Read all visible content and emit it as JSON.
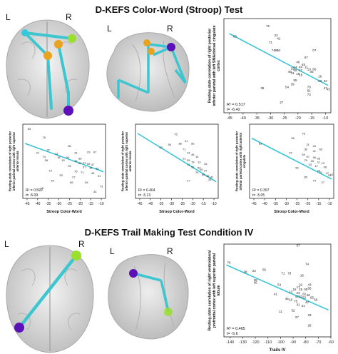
{
  "sections": [
    {
      "title": "D-KEFS Color-Word (Stroop) Test"
    },
    {
      "title": "D-KEFS Trail Making Test Condition IV"
    }
  ],
  "orientation": {
    "left": "L",
    "right": "R"
  },
  "colors": {
    "fit_line": "#39c5d6",
    "connection": "#3cc6d0",
    "node_green": "#9adf2e",
    "node_orange": "#e9a320",
    "node_purple": "#5b10b8",
    "node_cyan": "#36c8df",
    "brain_fill": "#d9d9d9"
  },
  "chart_data": [
    {
      "type": "scatter",
      "panel": "stroop-main",
      "xlabel": "Stroop Color-Word",
      "ylabel": "Resting-state correlation of right posterior inferior parietal with left SMA/dorsal cingulate cortex",
      "xlim": [
        -47,
        -8
      ],
      "ylim": [
        -1,
        1
      ],
      "xticks": [
        -45,
        -40,
        -35,
        -30,
        -25,
        -20,
        -15,
        -10
      ],
      "yticks": [],
      "fit": {
        "x": [
          -45,
          -9
        ],
        "y": [
          0.68,
          -0.42
        ]
      },
      "stats": [
        "R² = 0.517",
        "t= -6.42"
      ],
      "points": [
        {
          "x": -31,
          "y": 0.82,
          "label": "76"
        },
        {
          "x": -43,
          "y": 0.6,
          "label": "63"
        },
        {
          "x": -28,
          "y": 0.62,
          "label": "22"
        },
        {
          "x": -27,
          "y": 0.55,
          "label": "41"
        },
        {
          "x": -30,
          "y": 0.47,
          "label": "71"
        },
        {
          "x": -28,
          "y": 0.3,
          "label": "36"
        },
        {
          "x": -29,
          "y": 0.3,
          "label": "74"
        },
        {
          "x": -27,
          "y": 0.3,
          "label": "52"
        },
        {
          "x": -14,
          "y": 0.3,
          "label": "07"
        },
        {
          "x": -17,
          "y": 0.15,
          "label": "67"
        },
        {
          "x": -20,
          "y": 0.05,
          "label": "46"
        },
        {
          "x": -18,
          "y": 0.0,
          "label": "45"
        },
        {
          "x": -21,
          "y": -0.05,
          "label": "14"
        },
        {
          "x": -19,
          "y": -0.05,
          "label": "44"
        },
        {
          "x": -17,
          "y": -0.05,
          "label": "11"
        },
        {
          "x": -22,
          "y": -0.08,
          "label": "15"
        },
        {
          "x": -16,
          "y": -0.1,
          "label": "13"
        },
        {
          "x": -14,
          "y": -0.1,
          "label": "65"
        },
        {
          "x": -21,
          "y": -0.12,
          "label": "06"
        },
        {
          "x": -19,
          "y": -0.12,
          "label": "17"
        },
        {
          "x": -15,
          "y": -0.15,
          "label": "05"
        },
        {
          "x": -23,
          "y": -0.15,
          "label": "49"
        },
        {
          "x": -22,
          "y": -0.18,
          "label": "31"
        },
        {
          "x": -20,
          "y": -0.2,
          "label": "19"
        },
        {
          "x": -19,
          "y": -0.22,
          "label": "18"
        },
        {
          "x": -12,
          "y": -0.25,
          "label": "16"
        },
        {
          "x": -21,
          "y": -0.33,
          "label": "55"
        },
        {
          "x": -12,
          "y": -0.35,
          "label": "23"
        },
        {
          "x": -10,
          "y": -0.35,
          "label": "32"
        },
        {
          "x": -22,
          "y": -0.42,
          "label": "39"
        },
        {
          "x": -16,
          "y": -0.48,
          "label": "79"
        },
        {
          "x": -33,
          "y": -0.5,
          "label": "38"
        },
        {
          "x": -24,
          "y": -0.48,
          "label": "54"
        },
        {
          "x": -16,
          "y": -0.55,
          "label": "61"
        },
        {
          "x": -10,
          "y": -0.5,
          "label": "47"
        },
        {
          "x": -9,
          "y": -0.52,
          "label": "43"
        },
        {
          "x": -16,
          "y": -0.64,
          "label": "73"
        },
        {
          "x": -26,
          "y": -0.8,
          "label": "27"
        }
      ]
    },
    {
      "type": "scatter",
      "panel": "stroop-lower-1",
      "xlabel": "Stroop Color-Word",
      "ylabel": "Resting-state correlation of right posterior inferior parietal cortex with right superior anterior insula",
      "xlim": [
        -47,
        -8
      ],
      "ylim": [
        -1,
        1
      ],
      "xticks": [
        -45,
        -40,
        -35,
        -30,
        -25,
        -20,
        -15,
        -10
      ],
      "yticks": [],
      "fit": {
        "x": [
          -46,
          -9
        ],
        "y": [
          0.48,
          -0.28
        ]
      },
      "stats": [
        "R² = 0.590",
        "t= -5.09"
      ],
      "points": [
        {
          "x": -44,
          "y": 0.85,
          "label": "63"
        },
        {
          "x": -37,
          "y": 0.62,
          "label": "76"
        },
        {
          "x": -25,
          "y": 0.38,
          "label": "56"
        },
        {
          "x": -35,
          "y": 0.28,
          "label": "22"
        },
        {
          "x": -40,
          "y": 0.2,
          "label": "21"
        },
        {
          "x": -31,
          "y": 0.18,
          "label": "11"
        },
        {
          "x": -22,
          "y": 0.2,
          "label": "41"
        },
        {
          "x": -16,
          "y": 0.22,
          "label": "29"
        },
        {
          "x": -13,
          "y": 0.22,
          "label": "07"
        },
        {
          "x": -37,
          "y": 0.1,
          "label": "74"
        },
        {
          "x": -30,
          "y": 0.08,
          "label": "36"
        },
        {
          "x": -26,
          "y": 0.08,
          "label": "06"
        },
        {
          "x": -20,
          "y": 0.05,
          "label": "55"
        },
        {
          "x": -36,
          "y": 0.0,
          "label": "38"
        },
        {
          "x": -28,
          "y": 0.0,
          "label": "15"
        },
        {
          "x": -22,
          "y": -0.02,
          "label": "44"
        },
        {
          "x": -20,
          "y": -0.08,
          "label": "52"
        },
        {
          "x": -18,
          "y": -0.08,
          "label": "23"
        },
        {
          "x": -16,
          "y": -0.1,
          "label": "65"
        },
        {
          "x": -14,
          "y": -0.12,
          "label": "47"
        },
        {
          "x": -25,
          "y": -0.15,
          "label": "04"
        },
        {
          "x": -18,
          "y": -0.18,
          "label": "37"
        },
        {
          "x": -15,
          "y": -0.2,
          "label": "16"
        },
        {
          "x": -12,
          "y": -0.22,
          "label": "43"
        },
        {
          "x": -34,
          "y": -0.28,
          "label": "14"
        },
        {
          "x": -22,
          "y": -0.3,
          "label": "75"
        },
        {
          "x": -19,
          "y": -0.33,
          "label": "71"
        },
        {
          "x": -14,
          "y": -0.35,
          "label": "45"
        },
        {
          "x": -29,
          "y": -0.4,
          "label": "33"
        },
        {
          "x": -23,
          "y": -0.45,
          "label": "27"
        },
        {
          "x": -11,
          "y": -0.42,
          "label": "31"
        },
        {
          "x": -33,
          "y": -0.55,
          "label": "54"
        },
        {
          "x": -24,
          "y": -0.6,
          "label": "85"
        },
        {
          "x": -17,
          "y": -0.6,
          "label": "39"
        },
        {
          "x": -10,
          "y": -0.7,
          "label": "73"
        },
        {
          "x": -38,
          "y": -0.75,
          "label": "18"
        },
        {
          "x": -13,
          "y": -0.85,
          "label": "33"
        }
      ]
    },
    {
      "type": "scatter",
      "panel": "stroop-lower-2",
      "xlabel": "Stroop Color-Word",
      "ylabel": "Resting-state correlation of right posterior inferior parietal cortex with right superior anterior insula",
      "xlim": [
        -47,
        -8
      ],
      "ylim": [
        -1,
        1
      ],
      "xticks": [
        -45,
        -40,
        -35,
        -30,
        -25,
        -20,
        -15,
        -10
      ],
      "yticks": [],
      "fit": {
        "x": [
          -46,
          -9
        ],
        "y": [
          0.75,
          -0.55
        ]
      },
      "stats": [
        "R² = 0.404",
        "t= -5.13"
      ],
      "points": [
        {
          "x": -28,
          "y": 0.7,
          "label": "76"
        },
        {
          "x": -23,
          "y": 0.52,
          "label": "41"
        },
        {
          "x": -31,
          "y": 0.42,
          "label": "36"
        },
        {
          "x": -26,
          "y": 0.45,
          "label": "38"
        },
        {
          "x": -20,
          "y": 0.45,
          "label": "50"
        },
        {
          "x": -35,
          "y": 0.35,
          "label": "63"
        },
        {
          "x": -24,
          "y": 0.3,
          "label": "71"
        },
        {
          "x": -22,
          "y": 0.2,
          "label": "44"
        },
        {
          "x": -20,
          "y": 0.15,
          "label": "45"
        },
        {
          "x": -18,
          "y": 0.1,
          "label": "14"
        },
        {
          "x": -24,
          "y": 0.05,
          "label": "21"
        },
        {
          "x": -22,
          "y": 0.0,
          "label": "55"
        },
        {
          "x": -20,
          "y": -0.05,
          "label": "79"
        },
        {
          "x": -17,
          "y": -0.05,
          "label": "13"
        },
        {
          "x": -14,
          "y": -0.1,
          "label": "15"
        },
        {
          "x": -22,
          "y": -0.12,
          "label": "11"
        },
        {
          "x": -20,
          "y": -0.18,
          "label": "52"
        },
        {
          "x": -17,
          "y": -0.2,
          "label": "54"
        },
        {
          "x": -16,
          "y": -0.25,
          "label": "05"
        },
        {
          "x": -14,
          "y": -0.28,
          "label": "37"
        },
        {
          "x": -18,
          "y": -0.33,
          "label": "74"
        },
        {
          "x": -15,
          "y": -0.38,
          "label": "65"
        },
        {
          "x": -13,
          "y": -0.42,
          "label": "46"
        },
        {
          "x": -11,
          "y": -0.45,
          "label": "47"
        },
        {
          "x": -12,
          "y": -0.52,
          "label": "33"
        },
        {
          "x": -22,
          "y": -0.55,
          "label": "27"
        }
      ]
    },
    {
      "type": "scatter",
      "panel": "stroop-lower-3",
      "xlabel": "Stroop Color-Word",
      "ylabel": "Resting-state correlation of right posterior inferior parietal cortex with right anterior cingulate",
      "xlim": [
        -47,
        -8
      ],
      "ylim": [
        -1,
        1
      ],
      "xticks": [
        -45,
        -40,
        -35,
        -30,
        -25,
        -20,
        -15,
        -10
      ],
      "yticks": [],
      "fit": {
        "x": [
          -46,
          -9
        ],
        "y": [
          0.62,
          -0.48
        ]
      },
      "stats": [
        "R² = 0.397",
        "t= -5.05"
      ],
      "points": [
        {
          "x": -22,
          "y": 0.72,
          "label": "76"
        },
        {
          "x": -27,
          "y": 0.6,
          "label": "38"
        },
        {
          "x": -42,
          "y": 0.45,
          "label": "63"
        },
        {
          "x": -20,
          "y": 0.42,
          "label": "21"
        },
        {
          "x": -17,
          "y": 0.38,
          "label": "44"
        },
        {
          "x": -21,
          "y": 0.3,
          "label": "36"
        },
        {
          "x": -17,
          "y": 0.25,
          "label": "41"
        },
        {
          "x": -14,
          "y": 0.3,
          "label": "65"
        },
        {
          "x": -28,
          "y": 0.2,
          "label": "22"
        },
        {
          "x": -22,
          "y": 0.15,
          "label": "54"
        },
        {
          "x": -20,
          "y": 0.1,
          "label": "07"
        },
        {
          "x": -17,
          "y": 0.08,
          "label": "46"
        },
        {
          "x": -15,
          "y": 0.05,
          "label": "05"
        },
        {
          "x": -21,
          "y": 0.0,
          "label": "79"
        },
        {
          "x": -18,
          "y": -0.02,
          "label": "15"
        },
        {
          "x": -15,
          "y": -0.05,
          "label": "11"
        },
        {
          "x": -13,
          "y": -0.08,
          "label": "13"
        },
        {
          "x": -19,
          "y": -0.12,
          "label": "33"
        },
        {
          "x": -16,
          "y": -0.15,
          "label": "17"
        },
        {
          "x": -12,
          "y": -0.18,
          "label": "06"
        },
        {
          "x": -25,
          "y": -0.2,
          "label": "52"
        },
        {
          "x": -15,
          "y": -0.28,
          "label": "23"
        },
        {
          "x": -14,
          "y": -0.33,
          "label": "31"
        },
        {
          "x": -11,
          "y": -0.35,
          "label": "47"
        },
        {
          "x": -10,
          "y": -0.4,
          "label": "32"
        },
        {
          "x": -9,
          "y": -0.38,
          "label": "42"
        },
        {
          "x": -21,
          "y": -0.45,
          "label": "85"
        },
        {
          "x": -17,
          "y": -0.55,
          "label": "74"
        },
        {
          "x": -13,
          "y": -0.6,
          "label": "27"
        }
      ]
    },
    {
      "type": "scatter",
      "panel": "trails",
      "xlabel": "Trails IV",
      "ylabel": "Resting-state correlation of right ventrolateral prefrontal cortex with left superior parietal lobule",
      "xlim": [
        -145,
        -60
      ],
      "ylim": [
        -1,
        1
      ],
      "xticks": [
        -140,
        -130,
        -120,
        -110,
        -100,
        -90,
        -80,
        -70,
        -60
      ],
      "yticks": [],
      "fit": {
        "x": [
          -143,
          -62
        ],
        "y": [
          0.55,
          -0.42
        ]
      },
      "stats": [
        "R² = 0.465",
        "t= -5.6"
      ],
      "points": [
        {
          "x": -86,
          "y": 0.95,
          "label": "07"
        },
        {
          "x": -141,
          "y": 0.58,
          "label": "76"
        },
        {
          "x": -79,
          "y": 0.55,
          "label": "74"
        },
        {
          "x": -121,
          "y": 0.4,
          "label": "22"
        },
        {
          "x": -113,
          "y": 0.42,
          "label": "55"
        },
        {
          "x": -93,
          "y": 0.35,
          "label": "73"
        },
        {
          "x": -83,
          "y": 0.3,
          "label": "16"
        },
        {
          "x": -128,
          "y": 0.38,
          "label": "38"
        },
        {
          "x": -98,
          "y": 0.35,
          "label": "71"
        },
        {
          "x": -120,
          "y": 0.2,
          "label": "38"
        },
        {
          "x": -120,
          "y": 0.15,
          "label": "36"
        },
        {
          "x": -101,
          "y": 0.1,
          "label": "54"
        },
        {
          "x": -84,
          "y": 0.1,
          "label": "32"
        },
        {
          "x": -77,
          "y": 0.1,
          "label": "43"
        },
        {
          "x": -86,
          "y": 0.05,
          "label": "17"
        },
        {
          "x": -89,
          "y": 0.0,
          "label": "15"
        },
        {
          "x": -84,
          "y": 0.0,
          "label": "25"
        },
        {
          "x": -80,
          "y": 0.0,
          "label": "05"
        },
        {
          "x": -77,
          "y": 0.02,
          "label": "85"
        },
        {
          "x": -104,
          "y": -0.1,
          "label": "41"
        },
        {
          "x": -92,
          "y": -0.05,
          "label": "13"
        },
        {
          "x": -86,
          "y": -0.08,
          "label": "23"
        },
        {
          "x": -81,
          "y": -0.1,
          "label": "62"
        },
        {
          "x": -78,
          "y": -0.12,
          "label": "46"
        },
        {
          "x": -87,
          "y": -0.15,
          "label": "47"
        },
        {
          "x": -84,
          "y": -0.15,
          "label": "63"
        },
        {
          "x": -81,
          "y": -0.18,
          "label": "52"
        },
        {
          "x": -75,
          "y": -0.18,
          "label": "65"
        },
        {
          "x": -95,
          "y": -0.2,
          "label": "45"
        },
        {
          "x": -92,
          "y": -0.22,
          "label": "18"
        },
        {
          "x": -88,
          "y": -0.25,
          "label": "75"
        },
        {
          "x": -79,
          "y": -0.28,
          "label": "42"
        },
        {
          "x": -72,
          "y": -0.22,
          "label": "56"
        },
        {
          "x": -86,
          "y": -0.33,
          "label": "31"
        },
        {
          "x": -82,
          "y": -0.35,
          "label": "21"
        },
        {
          "x": -90,
          "y": -0.45,
          "label": "32"
        },
        {
          "x": -100,
          "y": -0.48,
          "label": "11"
        },
        {
          "x": -77,
          "y": -0.55,
          "label": "33"
        },
        {
          "x": -87,
          "y": -0.6,
          "label": "27"
        },
        {
          "x": -77,
          "y": -0.78,
          "label": "28"
        }
      ]
    }
  ],
  "brains": [
    {
      "id": "stroop-top-left",
      "label_left": "L",
      "label_right": "R"
    },
    {
      "id": "stroop-top-middle",
      "label_left": "L",
      "label_right": "R"
    },
    {
      "id": "trails-left",
      "label_left": "L",
      "label_right": "R"
    },
    {
      "id": "trails-middle",
      "label_left": "L",
      "label_right": "R"
    }
  ]
}
